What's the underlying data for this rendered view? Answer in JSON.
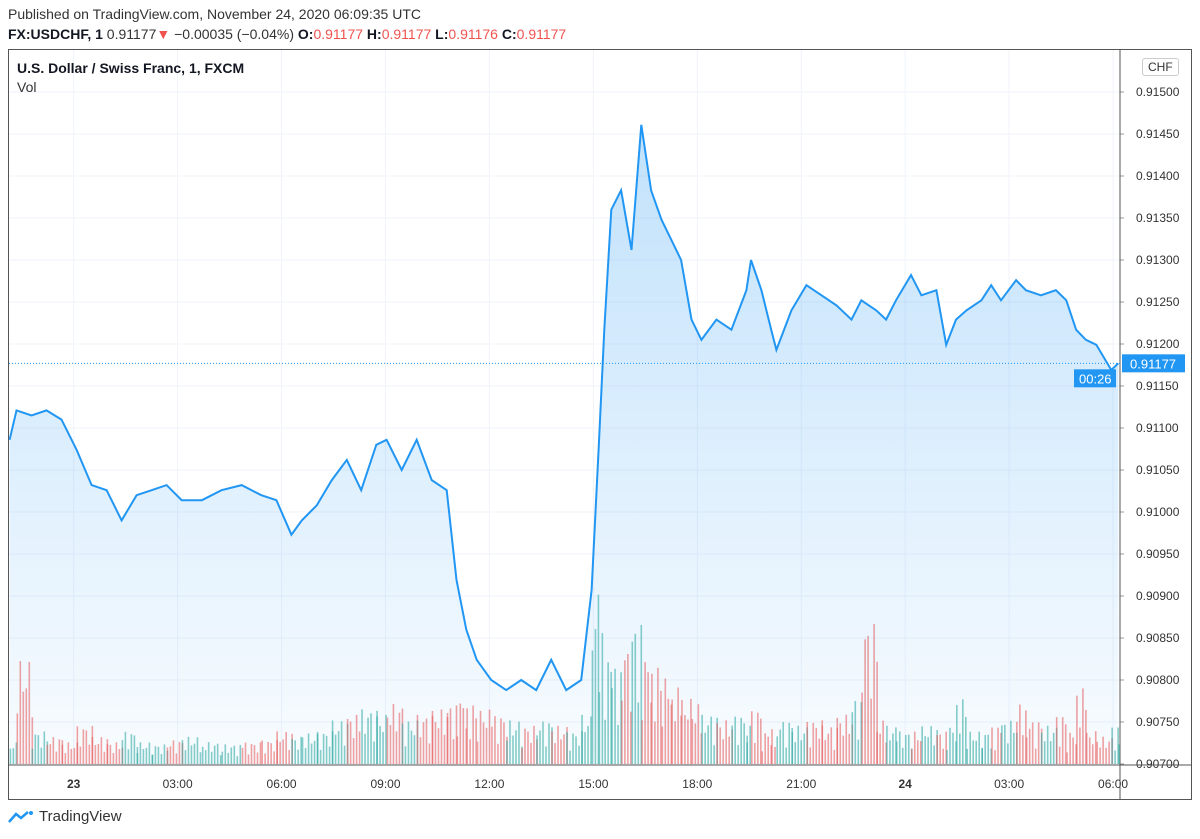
{
  "header": {
    "published": "Published on TradingView.com, November 24, 2020 06:09:35 UTC",
    "symbol": "FX:USDCHF, 1",
    "last": "0.91177",
    "change": "−0.00035 (−0.04%)",
    "change_direction": "down",
    "o_label": "O:",
    "o": "0.91177",
    "h_label": "H:",
    "h": "0.91177",
    "l_label": "L:",
    "l": "0.91176",
    "c_label": "C:",
    "c": "0.91177"
  },
  "chart_title": "U.S. Dollar / Swiss Franc, 1, FXCM",
  "volume_label": "Vol",
  "currency_button": "CHF",
  "last_price_label": "0.91177",
  "countdown": "00:26",
  "brand": "TradingView",
  "colors": {
    "line": "#2196f3",
    "up": "#26a69a",
    "down": "#ef5350"
  },
  "chart_data": {
    "type": "area",
    "ylim": [
      0.907,
      0.915
    ],
    "grid": true,
    "yticks": [
      "0.91500",
      "0.91450",
      "0.91400",
      "0.91350",
      "0.91300",
      "0.91250",
      "0.91200",
      "0.91150",
      "0.91100",
      "0.91050",
      "0.91000",
      "0.90950",
      "0.90900",
      "0.90850",
      "0.90800",
      "0.90750",
      "0.90700"
    ],
    "xticks": [
      [
        "2020-11-23 00:00",
        "23"
      ],
      [
        "2020-11-23 03:00",
        "03:00"
      ],
      [
        "2020-11-23 06:00",
        "06:00"
      ],
      [
        "2020-11-23 09:00",
        "09:00"
      ],
      [
        "2020-11-23 12:00",
        "12:00"
      ],
      [
        "2020-11-23 15:00",
        "15:00"
      ],
      [
        "2020-11-23 18:00",
        "18:00"
      ],
      [
        "2020-11-23 21:00",
        "21:00"
      ],
      [
        "2020-11-24 00:00",
        "24"
      ],
      [
        "2020-11-24 03:00",
        "03:00"
      ],
      [
        "2020-11-24 06:00",
        "06:00"
      ]
    ],
    "xlim": [
      "2020-11-22 22:08",
      "2020-11-24 06:12"
    ],
    "series": [
      [
        "2020-11-22 22:09",
        0.91086
      ],
      [
        "2020-11-22 22:21",
        0.91121
      ],
      [
        "2020-11-22 22:47",
        0.91115
      ],
      [
        "2020-11-22 23:13",
        0.91121
      ],
      [
        "2020-11-22 23:39",
        0.9111
      ],
      [
        "2020-11-23 00:05",
        0.91074
      ],
      [
        "2020-11-23 00:31",
        0.91032
      ],
      [
        "2020-11-23 00:57",
        0.91026
      ],
      [
        "2020-11-23 01:23",
        0.9099
      ],
      [
        "2020-11-23 01:49",
        0.9102
      ],
      [
        "2020-11-23 02:15",
        0.91026
      ],
      [
        "2020-11-23 02:41",
        0.91032
      ],
      [
        "2020-11-23 03:07",
        0.91014
      ],
      [
        "2020-11-23 03:42",
        0.91014
      ],
      [
        "2020-11-23 04:16",
        0.91026
      ],
      [
        "2020-11-23 04:51",
        0.91032
      ],
      [
        "2020-11-23 05:25",
        0.9102
      ],
      [
        "2020-11-23 05:51",
        0.91014
      ],
      [
        "2020-11-23 06:17",
        0.90973
      ],
      [
        "2020-11-23 06:35",
        0.9099
      ],
      [
        "2020-11-23 07:01",
        0.91008
      ],
      [
        "2020-11-23 07:27",
        0.91038
      ],
      [
        "2020-11-23 07:53",
        0.91062
      ],
      [
        "2020-11-23 08:18",
        0.91026
      ],
      [
        "2020-11-23 08:44",
        0.9108
      ],
      [
        "2020-11-23 09:02",
        0.91086
      ],
      [
        "2020-11-23 09:28",
        0.9105
      ],
      [
        "2020-11-23 09:54",
        0.91086
      ],
      [
        "2020-11-23 10:20",
        0.91038
      ],
      [
        "2020-11-23 10:46",
        0.91026
      ],
      [
        "2020-11-23 11:03",
        0.90919
      ],
      [
        "2020-11-23 11:20",
        0.9086
      ],
      [
        "2020-11-23 11:38",
        0.90824
      ],
      [
        "2020-11-23 12:03",
        0.908
      ],
      [
        "2020-11-23 12:29",
        0.90788
      ],
      [
        "2020-11-23 12:55",
        0.908
      ],
      [
        "2020-11-23 13:21",
        0.90788
      ],
      [
        "2020-11-23 13:47",
        0.90824
      ],
      [
        "2020-11-23 14:13",
        0.90788
      ],
      [
        "2020-11-23 14:39",
        0.908
      ],
      [
        "2020-11-23 14:57",
        0.90907
      ],
      [
        "2020-11-23 15:09",
        0.91074
      ],
      [
        "2020-11-23 15:19",
        0.91217
      ],
      [
        "2020-11-23 15:31",
        0.9136
      ],
      [
        "2020-11-23 15:48",
        0.91383
      ],
      [
        "2020-11-23 16:06",
        0.91312
      ],
      [
        "2020-11-23 16:23",
        0.91461
      ],
      [
        "2020-11-23 16:40",
        0.91383
      ],
      [
        "2020-11-23 16:58",
        0.91348
      ],
      [
        "2020-11-23 17:15",
        0.91324
      ],
      [
        "2020-11-23 17:32",
        0.913
      ],
      [
        "2020-11-23 17:50",
        0.91229
      ],
      [
        "2020-11-23 18:07",
        0.91205
      ],
      [
        "2020-11-23 18:33",
        0.91229
      ],
      [
        "2020-11-23 18:59",
        0.91217
      ],
      [
        "2020-11-23 19:25",
        0.91264
      ],
      [
        "2020-11-23 19:33",
        0.913
      ],
      [
        "2020-11-23 19:51",
        0.91264
      ],
      [
        "2020-11-23 20:08",
        0.91217
      ],
      [
        "2020-11-23 20:17",
        0.91193
      ],
      [
        "2020-11-23 20:43",
        0.9124
      ],
      [
        "2020-11-23 21:09",
        0.9127
      ],
      [
        "2020-11-23 21:35",
        0.91258
      ],
      [
        "2020-11-23 22:01",
        0.91246
      ],
      [
        "2020-11-23 22:27",
        0.91229
      ],
      [
        "2020-11-23 22:44",
        0.91252
      ],
      [
        "2020-11-23 23:10",
        0.9124
      ],
      [
        "2020-11-23 23:27",
        0.91229
      ],
      [
        "2020-11-23 23:44",
        0.91252
      ],
      [
        "2020-11-24 00:10",
        0.91282
      ],
      [
        "2020-11-24 00:28",
        0.91258
      ],
      [
        "2020-11-24 00:54",
        0.91264
      ],
      [
        "2020-11-24 01:11",
        0.91199
      ],
      [
        "2020-11-24 01:28",
        0.91229
      ],
      [
        "2020-11-24 01:46",
        0.9124
      ],
      [
        "2020-11-24 02:12",
        0.91252
      ],
      [
        "2020-11-24 02:29",
        0.9127
      ],
      [
        "2020-11-24 02:46",
        0.91252
      ],
      [
        "2020-11-24 03:12",
        0.91276
      ],
      [
        "2020-11-24 03:29",
        0.91264
      ],
      [
        "2020-11-24 03:55",
        0.91258
      ],
      [
        "2020-11-24 04:21",
        0.91264
      ],
      [
        "2020-11-24 04:39",
        0.91252
      ],
      [
        "2020-11-24 04:56",
        0.91217
      ],
      [
        "2020-11-24 05:13",
        0.91205
      ],
      [
        "2020-11-24 05:31",
        0.91199
      ],
      [
        "2020-11-24 05:57",
        0.91169
      ],
      [
        "2020-11-24 06:09",
        0.91177
      ]
    ],
    "volume": [
      20,
      95,
      30,
      25,
      20,
      35,
      25,
      20,
      30,
      20,
      18,
      22,
      25,
      20,
      18,
      20,
      22,
      30,
      25,
      28,
      30,
      40,
      45,
      50,
      45,
      55,
      40,
      45,
      50,
      55,
      60,
      55,
      50,
      45,
      40,
      35,
      40,
      35,
      30,
      45,
      160,
      120,
      100,
      90,
      110,
      130,
      100,
      90,
      80,
      70,
      60,
      55,
      45,
      40,
      45,
      35,
      50,
      30,
      35,
      40,
      35,
      40,
      35,
      45,
      60,
      130,
      40,
      35,
      30,
      30,
      35,
      30,
      35,
      60,
      30,
      30,
      35,
      40,
      55,
      40,
      35,
      45,
      30,
      70,
      30,
      25,
      35,
      30,
      25,
      20
    ],
    "last_price": 0.91177
  }
}
